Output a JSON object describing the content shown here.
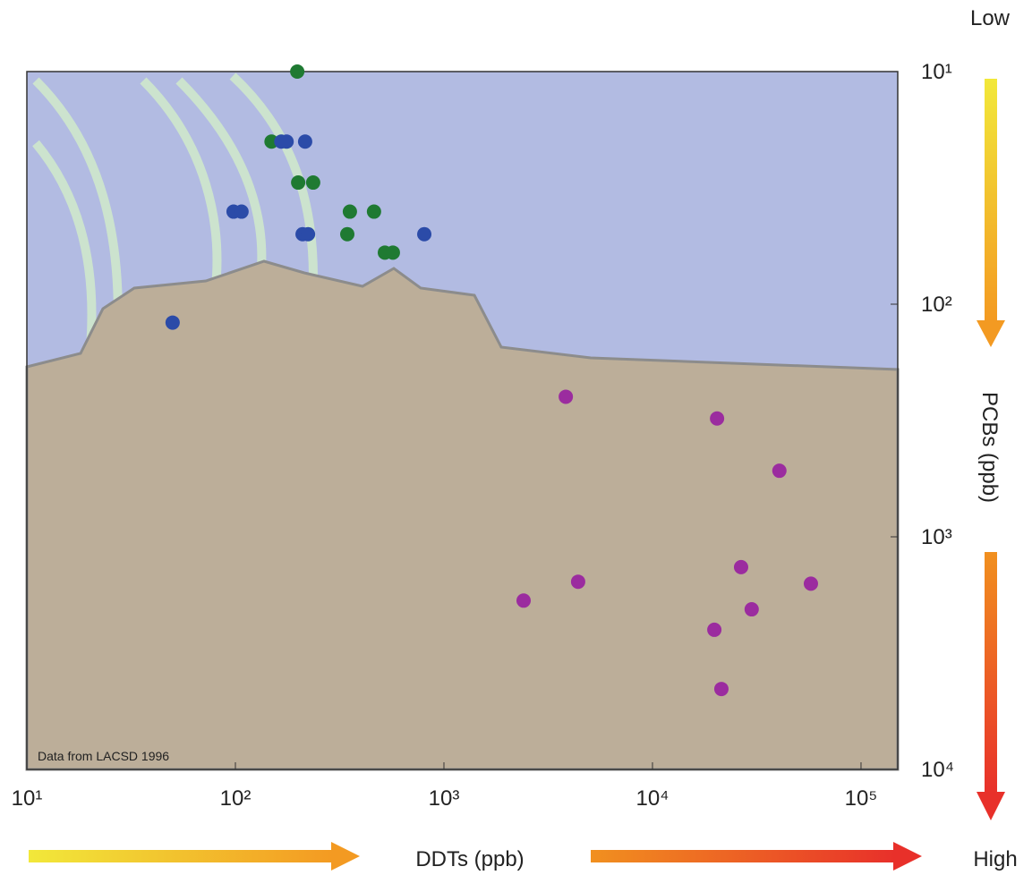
{
  "chart_data": {
    "type": "scatter",
    "x_label": "DDTs (ppb)",
    "y_label": "PCBs (ppb)",
    "top_label": "Low",
    "bottom_label": "High",
    "annotation": "Data from LACSD 1996",
    "xscale": "log",
    "yscale": "log",
    "y_reversed": true,
    "y_axis_side": "right",
    "grid": false,
    "xlim": [
      10,
      150000
    ],
    "ylim": [
      10,
      10000
    ],
    "xticks": [
      {
        "value": 10,
        "label": "10¹"
      },
      {
        "value": 100,
        "label": "10²"
      },
      {
        "value": 1000,
        "label": "10³"
      },
      {
        "value": 10000,
        "label": "10⁴"
      },
      {
        "value": 100000,
        "label": "10⁵"
      }
    ],
    "yticks": [
      {
        "value": 10,
        "label": "10¹"
      },
      {
        "value": 100,
        "label": "10²"
      },
      {
        "value": 1000,
        "label": "10³"
      },
      {
        "value": 10000,
        "label": "10⁴"
      }
    ],
    "series": [
      {
        "color": "#1f7a32",
        "x": [
          198,
          149,
          200,
          236,
          354,
          462,
          344,
          521,
          569
        ],
        "y": [
          10,
          20,
          30,
          30,
          40,
          40,
          50,
          60,
          60
        ]
      },
      {
        "color": "#2b4ba8",
        "x": [
          166,
          176,
          216,
          98,
          107,
          210,
          223,
          805,
          50
        ],
        "y": [
          20,
          20,
          20,
          40,
          40,
          50,
          50,
          50,
          120
        ]
      },
      {
        "color": "#9b2c9f",
        "x": [
          3840,
          20400,
          40600,
          26600,
          4400,
          57500,
          2410,
          29900,
          19800,
          21400
        ],
        "y": [
          250,
          310,
          520,
          1350,
          1560,
          1590,
          1880,
          2050,
          2510,
          4510
        ]
      }
    ]
  }
}
